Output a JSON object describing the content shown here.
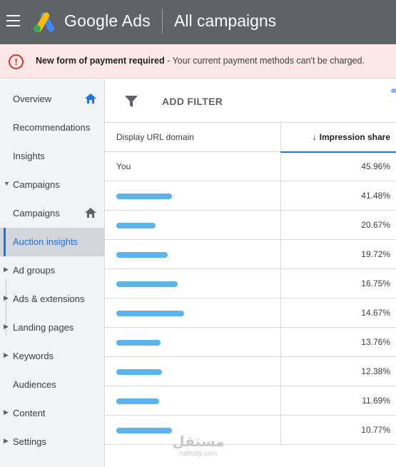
{
  "header": {
    "brand": "Google Ads",
    "title": "All campaigns"
  },
  "alert": {
    "bold_text": "New form of payment required",
    "text": " - Your current payment methods can't be charged."
  },
  "sidebar": {
    "items": [
      {
        "label": "Overview",
        "has_caret": false,
        "icon": "home-icon"
      },
      {
        "label": "Recommendations",
        "has_caret": false
      },
      {
        "label": "Insights",
        "has_caret": false
      },
      {
        "label": "Campaigns",
        "has_caret": true,
        "expanded": true
      },
      {
        "label": "Campaigns",
        "has_caret": false,
        "icon": "home-icon"
      },
      {
        "label": "Auction insights",
        "has_caret": false,
        "active": true
      },
      {
        "label": "Ad groups",
        "has_caret": true
      },
      {
        "label": "Ads & extensions",
        "has_caret": true
      },
      {
        "label": "Landing pages",
        "has_caret": true
      },
      {
        "label": "Keywords",
        "has_caret": true
      },
      {
        "label": "Audiences",
        "has_caret": false
      },
      {
        "label": "Content",
        "has_caret": true
      },
      {
        "label": "Settings",
        "has_caret": true
      }
    ]
  },
  "toolbar": {
    "add_filter_label": "ADD FILTER"
  },
  "table": {
    "columns": [
      "Display URL domain",
      "Impression share"
    ],
    "sort_icon": "arrow-down-icon",
    "rows": [
      {
        "domain": "You",
        "share": "45.96%"
      },
      {
        "domain": "",
        "share": "41.48%"
      },
      {
        "domain": "",
        "share": "20.67%"
      },
      {
        "domain": "",
        "share": "19.72%"
      },
      {
        "domain": "",
        "share": "16.75%"
      },
      {
        "domain": "",
        "share": "14.67%"
      },
      {
        "domain": "",
        "share": "13.76%"
      },
      {
        "domain": "",
        "share": "12.38%"
      },
      {
        "domain": "",
        "share": "11.69%"
      },
      {
        "domain": "",
        "share": "10.77%"
      }
    ]
  },
  "watermark": {
    "arabic": "مستقل",
    "site": "nafezly.com"
  },
  "colors": {
    "topbar": "#5f6368",
    "alert_bg": "#fce8e6",
    "alert_icon": "#d93025",
    "accent": "#1a73e8",
    "redaction": "#5bb4ec"
  }
}
